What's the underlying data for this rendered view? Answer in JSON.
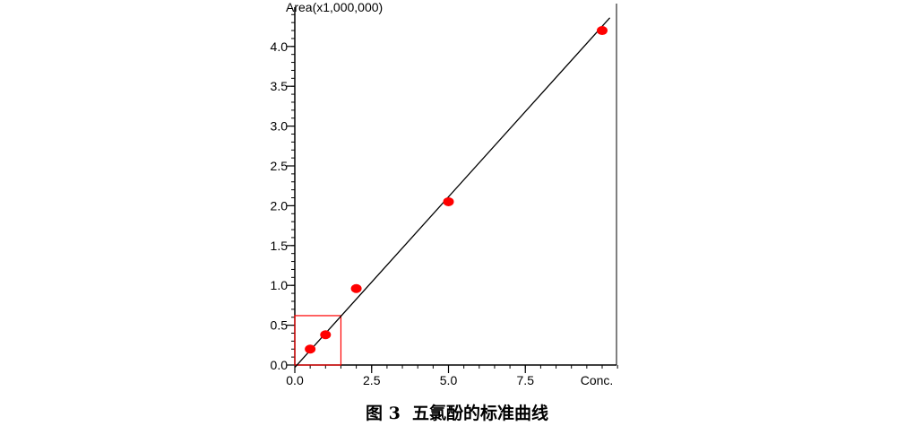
{
  "chart_data": {
    "type": "scatter",
    "ylabel": "Area(x1,000,000)",
    "xlabel": "Conc.",
    "xlim": [
      0,
      10.5
    ],
    "ylim": [
      0,
      4.4
    ],
    "x_ticks": [
      0.0,
      2.5,
      5.0,
      7.5
    ],
    "x_tick_labels": [
      "0.0",
      "2.5",
      "5.0",
      "7.5"
    ],
    "y_ticks": [
      0.0,
      0.5,
      1.0,
      1.5,
      2.0,
      2.5,
      3.0,
      3.5,
      4.0
    ],
    "y_tick_labels": [
      "0.0",
      "0.5",
      "1.0",
      "1.5",
      "2.0",
      "2.5",
      "3.0",
      "3.5",
      "4.0"
    ],
    "grid": false,
    "points": {
      "color": "#ff0000",
      "x": [
        0.5,
        1.0,
        2.0,
        5.0,
        10.0
      ],
      "y": [
        0.2,
        0.38,
        0.96,
        2.05,
        4.2
      ]
    },
    "fit_line": {
      "color": "#000000",
      "x": [
        0.0,
        10.25
      ],
      "y": [
        -0.03,
        4.36
      ]
    },
    "highlight_box": {
      "color": "#ff0000",
      "x": [
        0,
        1.5
      ],
      "y": [
        0,
        0.62
      ]
    }
  },
  "caption": {
    "number": "图 3",
    "title": "五氯酚的标准曲线"
  }
}
